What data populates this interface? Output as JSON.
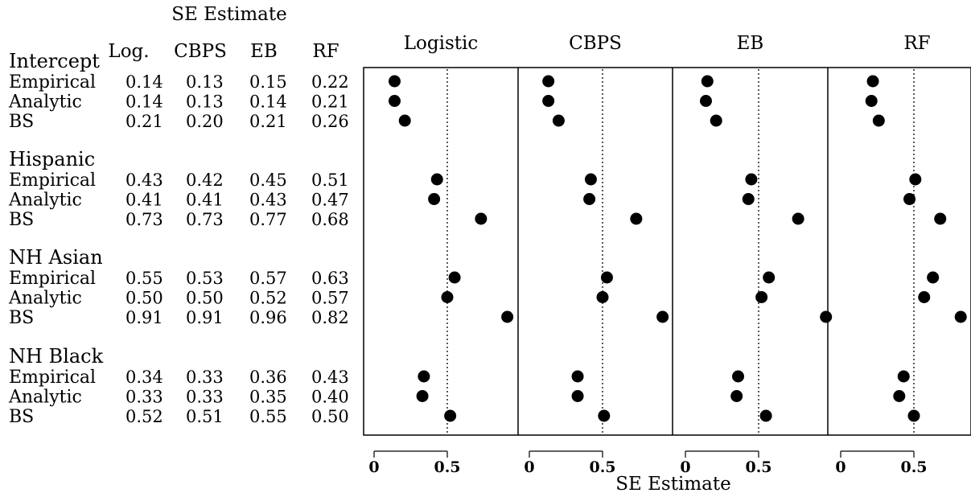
{
  "chart_data": {
    "type": "scatter",
    "table_header": "SE Estimate",
    "method_columns": [
      "Log.",
      "CBPS",
      "EB",
      "RF"
    ],
    "panels": [
      "Logistic",
      "CBPS",
      "EB",
      "RF"
    ],
    "xlabel": "SE Estimate",
    "xlim": [
      -0.07,
      0.93
    ],
    "xticks": [
      "0",
      "0.5"
    ],
    "xtick_values": [
      0,
      0.5
    ],
    "reference_line": 0.5,
    "groups": [
      {
        "name": "Intercept",
        "rows": [
          {
            "label": "Empirical",
            "values": [
              "0.14",
              "0.13",
              "0.15",
              "0.22"
            ]
          },
          {
            "label": "Analytic",
            "values": [
              "0.14",
              "0.13",
              "0.14",
              "0.21"
            ]
          },
          {
            "label": "BS",
            "values": [
              "0.21",
              "0.20",
              "0.21",
              "0.26"
            ]
          }
        ]
      },
      {
        "name": "Hispanic",
        "rows": [
          {
            "label": "Empirical",
            "values": [
              "0.43",
              "0.42",
              "0.45",
              "0.51"
            ]
          },
          {
            "label": "Analytic",
            "values": [
              "0.41",
              "0.41",
              "0.43",
              "0.47"
            ]
          },
          {
            "label": "BS",
            "values": [
              "0.73",
              "0.73",
              "0.77",
              "0.68"
            ]
          }
        ]
      },
      {
        "name": "NH Asian",
        "rows": [
          {
            "label": "Empirical",
            "values": [
              "0.55",
              "0.53",
              "0.57",
              "0.63"
            ]
          },
          {
            "label": "Analytic",
            "values": [
              "0.50",
              "0.50",
              "0.52",
              "0.57"
            ]
          },
          {
            "label": "BS",
            "values": [
              "0.91",
              "0.91",
              "0.96",
              "0.82"
            ]
          }
        ]
      },
      {
        "name": "NH Black",
        "rows": [
          {
            "label": "Empirical",
            "values": [
              "0.34",
              "0.33",
              "0.36",
              "0.43"
            ]
          },
          {
            "label": "Analytic",
            "values": [
              "0.33",
              "0.33",
              "0.35",
              "0.40"
            ]
          },
          {
            "label": "BS",
            "values": [
              "0.52",
              "0.51",
              "0.55",
              "0.50"
            ]
          }
        ]
      }
    ]
  }
}
